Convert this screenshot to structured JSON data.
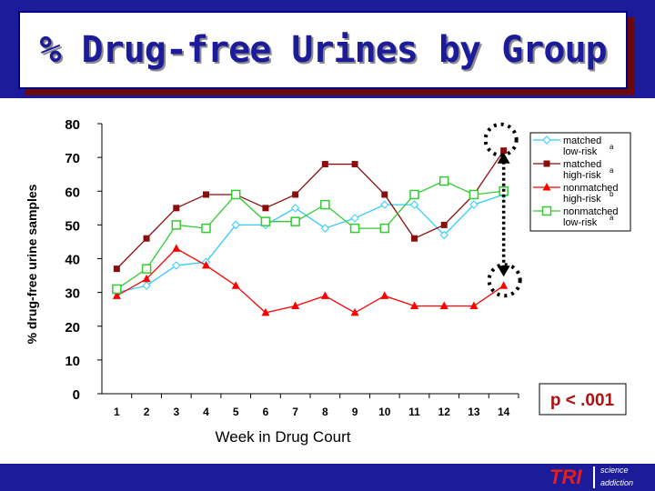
{
  "title": "% Drug-free Urines by Group",
  "annotation_p": "p < .001",
  "footer": {
    "logo": "TRI",
    "tag1": "science",
    "tag2": "addiction"
  },
  "chart_data": {
    "type": "line",
    "title": "% Drug-free Urines by Group",
    "xlabel": "Week in Drug Court",
    "ylabel": "% drug-free urine samples",
    "ylim": [
      0,
      80
    ],
    "yticks": [
      0,
      10,
      20,
      30,
      40,
      50,
      60,
      70,
      80
    ],
    "grid": false,
    "legend_position": "right",
    "x": [
      "1",
      "2",
      "3",
      "4",
      "5",
      "6",
      "7",
      "8",
      "9",
      "10",
      "11",
      "12",
      "13",
      "14"
    ],
    "series": [
      {
        "name": "matched low-risk",
        "superscript": "a",
        "color": "#33ccff",
        "marker": "diamond",
        "values": [
          30,
          32,
          38,
          39,
          50,
          50,
          55,
          49,
          52,
          56,
          56,
          47,
          56,
          59
        ]
      },
      {
        "name": "matched high-risk",
        "superscript": "a",
        "color": "#8b0d0d",
        "marker": "square",
        "values": [
          37,
          46,
          55,
          59,
          59,
          55,
          59,
          68,
          68,
          59,
          46,
          50,
          59,
          72
        ]
      },
      {
        "name": "nonmatched high-risk",
        "superscript": "b",
        "color": "#ff0000",
        "marker": "triangle",
        "values": [
          29,
          34,
          43,
          38,
          32,
          24,
          26,
          29,
          24,
          29,
          26,
          26,
          26,
          32
        ]
      },
      {
        "name": "nonmatched low-risk",
        "superscript": "a",
        "color": "#33cc33",
        "marker": "square-open",
        "values": [
          31,
          37,
          50,
          49,
          59,
          51,
          51,
          56,
          49,
          49,
          59,
          63,
          59,
          60
        ]
      }
    ]
  }
}
